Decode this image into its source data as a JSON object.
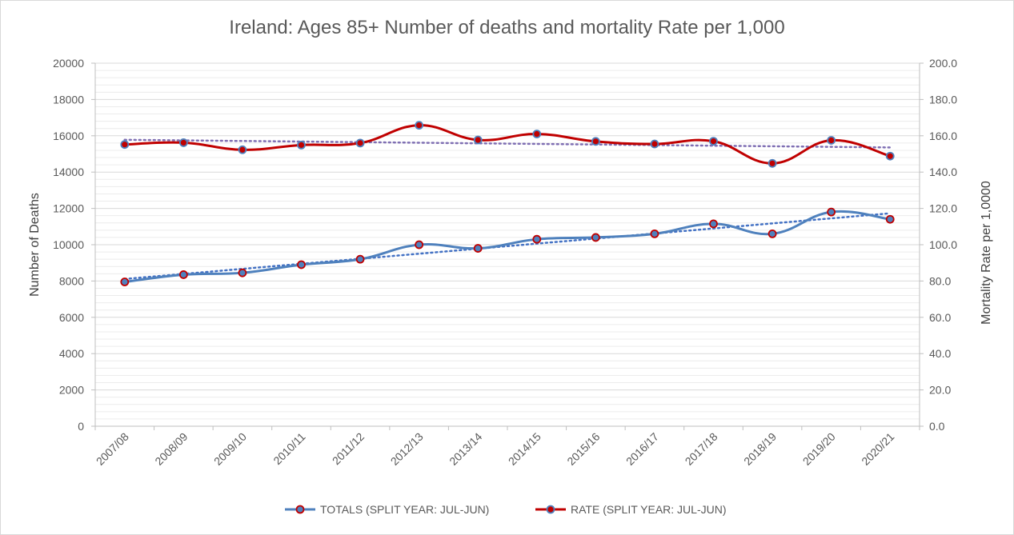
{
  "chart_data": {
    "type": "line",
    "title": "Ireland: Ages 85+ Number of deaths and mortality Rate per 1,000",
    "categories": [
      "2007/08",
      "2008/09",
      "2009/10",
      "2010/11",
      "2011/12",
      "2012/13",
      "2013/14",
      "2014/15",
      "2015/16",
      "2016/17",
      "2017/18",
      "2018/19",
      "2019/20",
      "2020/21"
    ],
    "y_left": {
      "label": "Number of Deaths",
      "ylim": [
        0,
        20000
      ],
      "ticks": [
        "0",
        "2000",
        "4000",
        "6000",
        "8000",
        "10000",
        "12000",
        "14000",
        "16000",
        "18000",
        "20000"
      ]
    },
    "y_right": {
      "label": "Mortality Rate per 1,0000",
      "ylim": [
        0,
        200
      ],
      "ticks": [
        "0.0",
        "20.0",
        "40.0",
        "60.0",
        "80.0",
        "100.0",
        "120.0",
        "140.0",
        "160.0",
        "180.0",
        "200.0"
      ]
    },
    "series": [
      {
        "name": "TOTALS (SPLIT YEAR: JUL-JUN)",
        "axis": "left",
        "color": "#4f81bd",
        "marker_fill": "#4f81bd",
        "marker_edge": "#c00000",
        "trendline": "linear",
        "trend_color": "#4472c4",
        "values": [
          7950,
          8350,
          8450,
          8900,
          9200,
          10000,
          9800,
          10300,
          10400,
          10600,
          11150,
          10600,
          11800,
          11400
        ]
      },
      {
        "name": "RATE (SPLIT YEAR: JUL-JUN)",
        "axis": "right",
        "color": "#c00000",
        "marker_fill": "#c00000",
        "marker_edge": "#4f81bd",
        "trendline": "linear",
        "trend_color": "#7f6fb3",
        "values": [
          155.2,
          156.2,
          152.3,
          154.9,
          156.0,
          165.8,
          157.7,
          161.0,
          156.9,
          155.5,
          157.0,
          144.8,
          157.5,
          148.8
        ]
      }
    ],
    "grid": true,
    "minor_grid": true,
    "legend": "bottom"
  }
}
